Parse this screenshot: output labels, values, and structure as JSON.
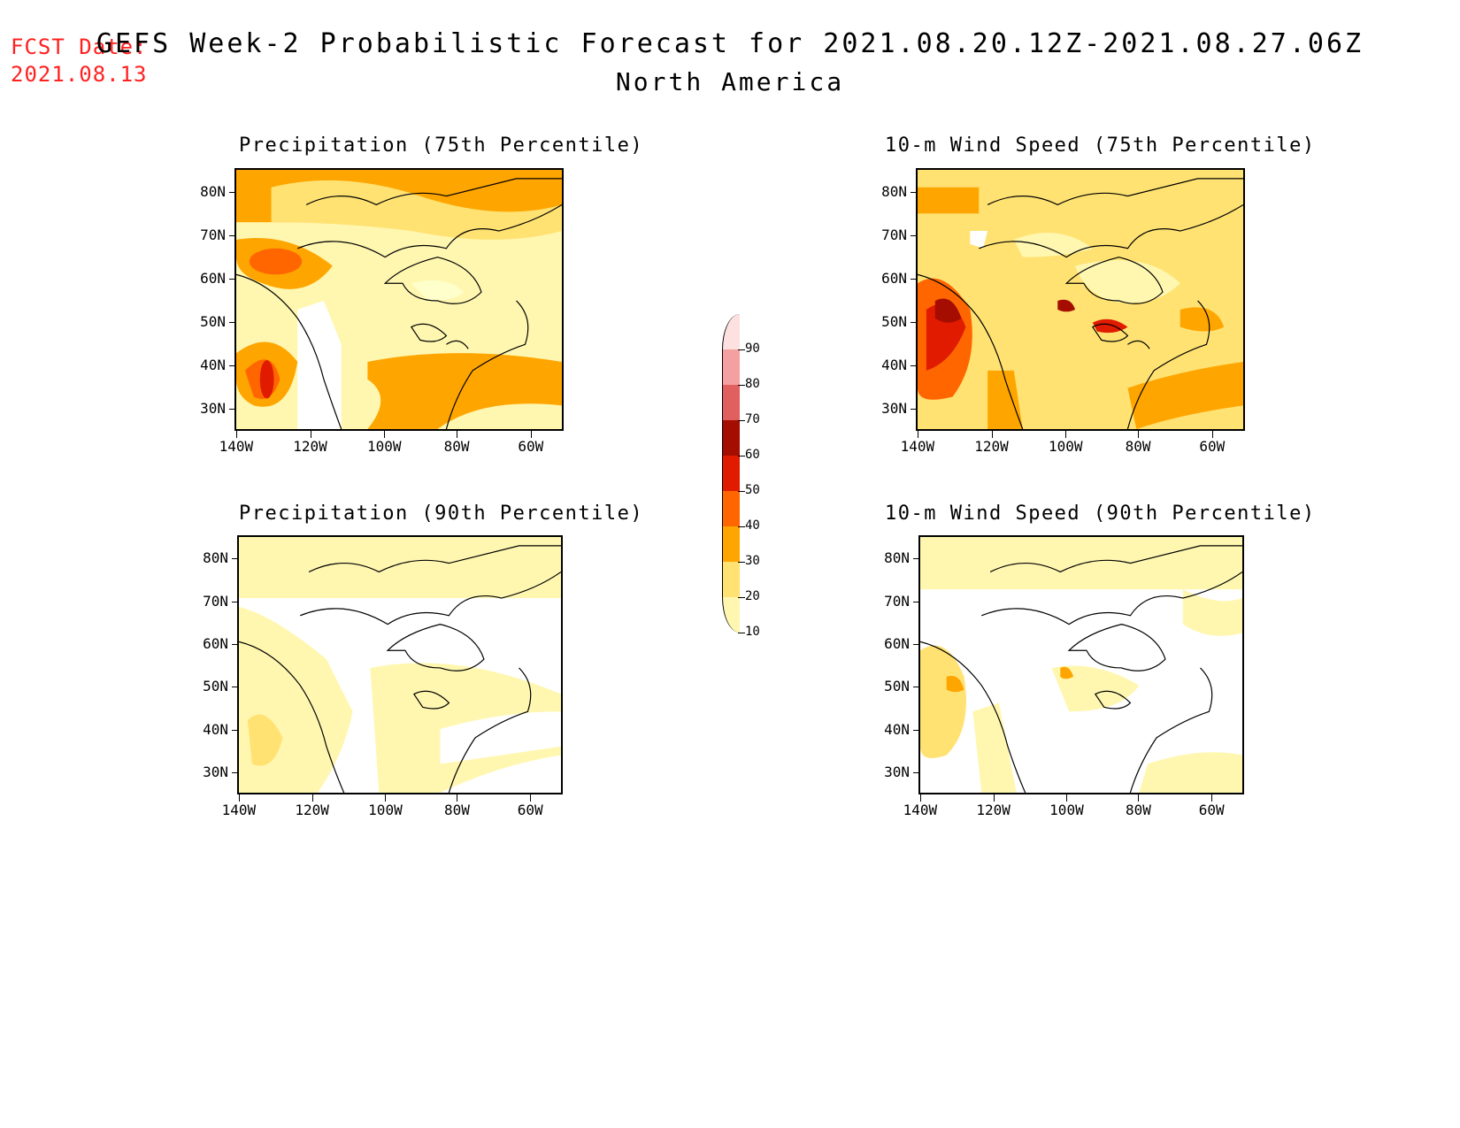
{
  "header": {
    "fcst_label": "FCST Date:",
    "fcst_date": "2021.08.13",
    "title": "GEFS Week-2 Probabilistic Forecast for 2021.08.20.12Z-2021.08.27.06Z",
    "subtitle": "North America"
  },
  "panels": [
    {
      "title": "Precipitation (75th Percentile)"
    },
    {
      "title": "10-m Wind Speed (75th Percentile)"
    },
    {
      "title": "Precipitation (90th Percentile)"
    },
    {
      "title": "10-m Wind Speed (90th Percentile)"
    }
  ],
  "axes": {
    "lat_labels": [
      "80N",
      "70N",
      "60N",
      "50N",
      "40N",
      "30N"
    ],
    "lon_labels": [
      "140W",
      "120W",
      "100W",
      "80W",
      "60W"
    ]
  },
  "colorbar": {
    "labels": [
      "90",
      "80",
      "70",
      "60",
      "50",
      "40",
      "30",
      "20",
      "10"
    ],
    "levels": [
      {
        "range": "10-20",
        "color": "#fff7b0"
      },
      {
        "range": "20-30",
        "color": "#ffe272"
      },
      {
        "range": "30-40",
        "color": "#ffa500"
      },
      {
        "range": "40-50",
        "color": "#ff6600"
      },
      {
        "range": "50-60",
        "color": "#e01b00"
      },
      {
        "range": "60-70",
        "color": "#a50d00"
      },
      {
        "range": "70-80",
        "color": "#e06060"
      },
      {
        "range": "80-90",
        "color": "#f4a0a0"
      },
      {
        "range": ">90",
        "color": "#fde0e0"
      }
    ]
  }
}
